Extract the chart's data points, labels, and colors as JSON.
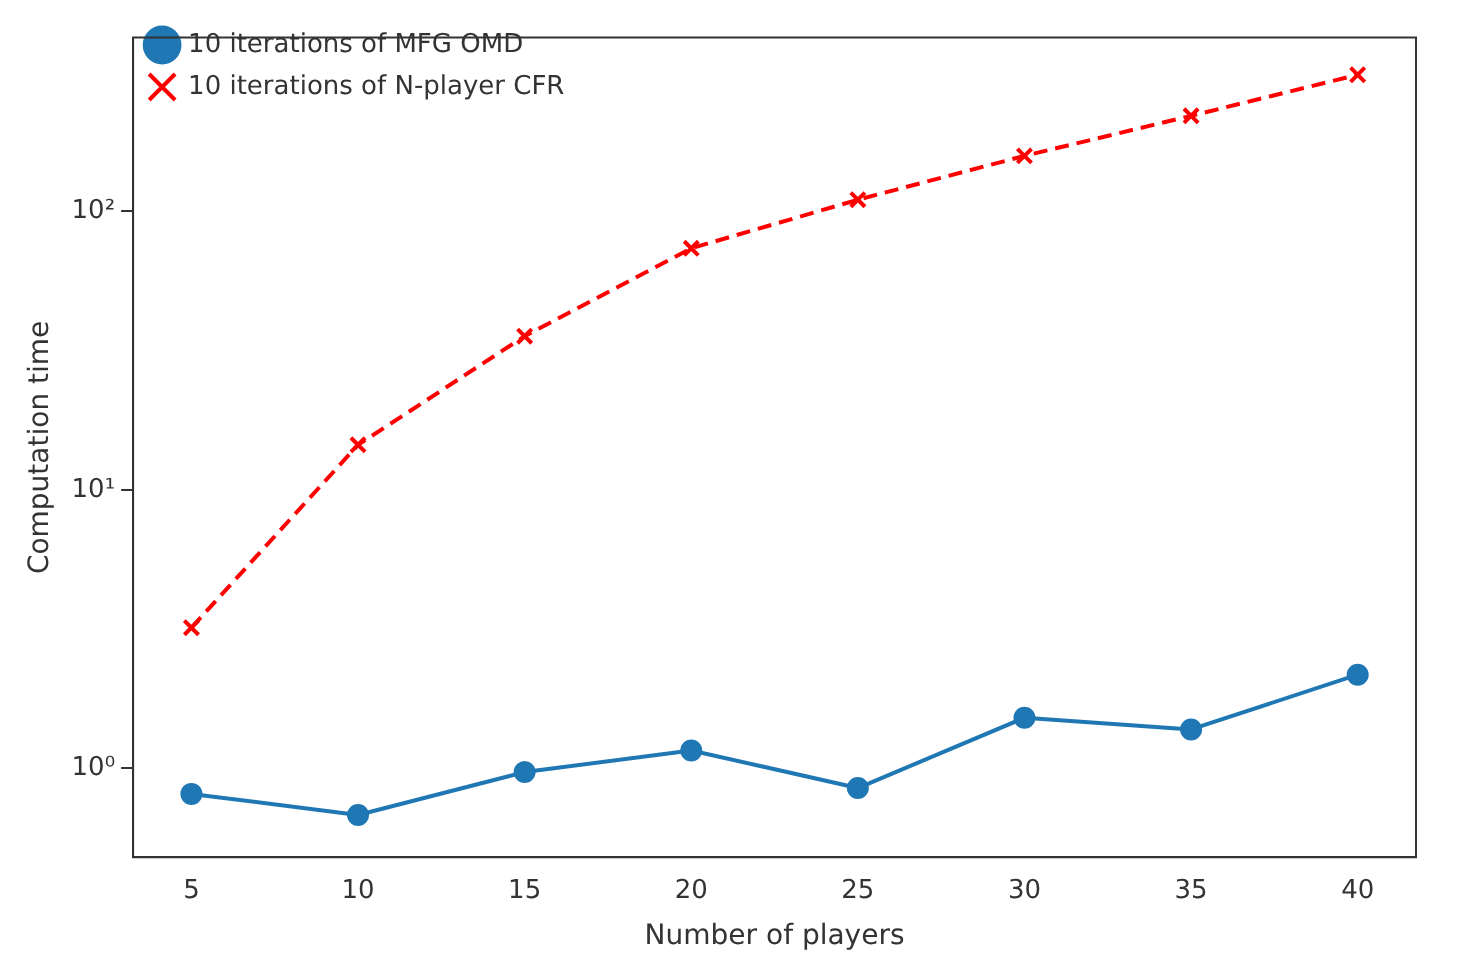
{
  "chart_data": {
    "type": "line",
    "xlabel": "Number of players",
    "ylabel": "Computation time",
    "log": "y",
    "xlim": [
      3.25,
      41.75
    ],
    "xticks": [
      5,
      10,
      15,
      20,
      25,
      30,
      35,
      40
    ],
    "ylim": [
      0.48,
      420
    ],
    "yticks": [
      {
        "value": 1,
        "label": "10⁰"
      },
      {
        "value": 10,
        "label": "10¹"
      },
      {
        "value": 100,
        "label": "10²"
      }
    ],
    "x": [
      5,
      10,
      15,
      20,
      25,
      30,
      35,
      40
    ],
    "grid": false,
    "legend": "top left",
    "series": [
      {
        "name": "10 iterations of MFG OMD",
        "color": "#1f77b4",
        "marker": "circle",
        "line_style": "solid",
        "values": [
          0.81,
          0.68,
          0.97,
          1.16,
          0.85,
          1.52,
          1.38,
          2.17
        ]
      },
      {
        "name": "10 iterations of N-player CFR",
        "color": "#ff0000",
        "marker": "cross",
        "line_style": "dashed",
        "values": [
          3.2,
          14.5,
          35.6,
          73.6,
          110,
          158,
          220,
          309
        ]
      }
    ]
  }
}
